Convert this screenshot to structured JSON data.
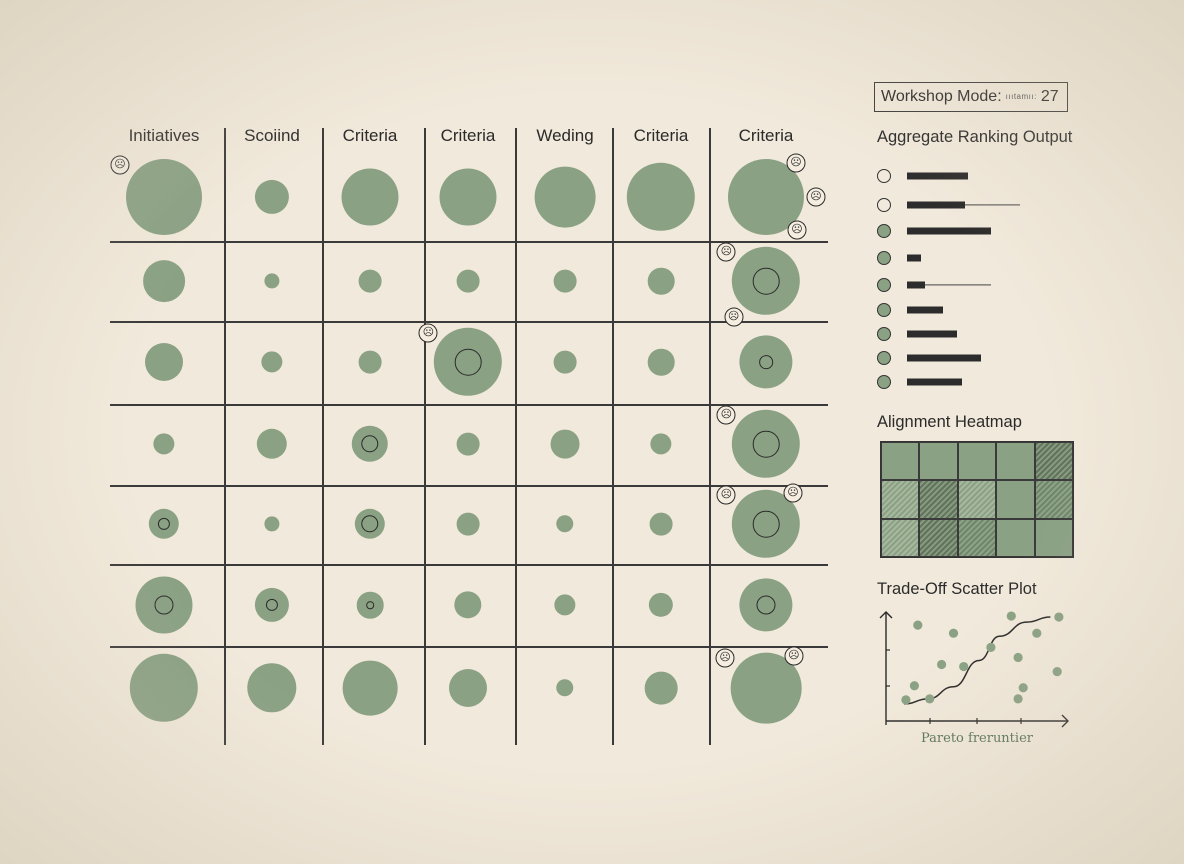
{
  "matrix": {
    "columns": [
      "Initiatives",
      "Scoiind",
      "Criteria",
      "Criteria",
      "Weding",
      "Criteria",
      "Criteria"
    ],
    "rows": [
      [
        {
          "size": 10,
          "ring": 0,
          "faces": [
            "top-left"
          ]
        },
        {
          "size": 4.5,
          "ring": 0
        },
        {
          "size": 7.5,
          "ring": 0
        },
        {
          "size": 7.5,
          "ring": 0
        },
        {
          "size": 8,
          "ring": 0
        },
        {
          "size": 9,
          "ring": 0
        },
        {
          "size": 10,
          "ring": 0,
          "faces": [
            "top-right",
            "right",
            "bottom-right"
          ]
        }
      ],
      [
        {
          "size": 5.5,
          "ring": 0
        },
        {
          "size": 2,
          "ring": 0
        },
        {
          "size": 3,
          "ring": 0
        },
        {
          "size": 3,
          "ring": 0
        },
        {
          "size": 3,
          "ring": 0
        },
        {
          "size": 3.5,
          "ring": 0
        },
        {
          "size": 9,
          "ring": 3.5,
          "faces": [
            "top-left",
            "bottom-left"
          ]
        }
      ],
      [
        {
          "size": 5,
          "ring": 0
        },
        {
          "size": 2.8,
          "ring": 0
        },
        {
          "size": 3,
          "ring": 0
        },
        {
          "size": 9,
          "ring": 3.5,
          "faces": [
            "top-left"
          ]
        },
        {
          "size": 3,
          "ring": 0
        },
        {
          "size": 3.5,
          "ring": 0
        },
        {
          "size": 7,
          "ring": 1.8
        }
      ],
      [
        {
          "size": 2.8,
          "ring": 0
        },
        {
          "size": 4,
          "ring": 0
        },
        {
          "size": 4.8,
          "ring": 2.3
        },
        {
          "size": 3,
          "ring": 0
        },
        {
          "size": 3.8,
          "ring": 0
        },
        {
          "size": 2.8,
          "ring": 0
        },
        {
          "size": 9,
          "ring": 3.5,
          "faces": [
            "top-left"
          ]
        }
      ],
      [
        {
          "size": 4,
          "ring": 1.6
        },
        {
          "size": 2,
          "ring": 0
        },
        {
          "size": 4,
          "ring": 2.3
        },
        {
          "size": 3,
          "ring": 0
        },
        {
          "size": 2.3,
          "ring": 0
        },
        {
          "size": 3,
          "ring": 0
        },
        {
          "size": 9,
          "ring": 3.5,
          "faces": [
            "top-left",
            "top-right"
          ]
        }
      ],
      [
        {
          "size": 7.5,
          "ring": 2.5
        },
        {
          "size": 4.5,
          "ring": 1.6
        },
        {
          "size": 3.5,
          "ring": 1
        },
        {
          "size": 3.6,
          "ring": 0
        },
        {
          "size": 2.8,
          "ring": 0
        },
        {
          "size": 3.2,
          "ring": 0
        },
        {
          "size": 7,
          "ring": 2.5
        }
      ],
      [
        {
          "size": 9,
          "ring": 0
        },
        {
          "size": 6.5,
          "ring": 0
        },
        {
          "size": 7.2,
          "ring": 0
        },
        {
          "size": 5,
          "ring": 0
        },
        {
          "size": 2.3,
          "ring": 0
        },
        {
          "size": 4.3,
          "ring": 0
        },
        {
          "size": 9.3,
          "ring": 0,
          "faces": [
            "top-left",
            "top-right"
          ]
        }
      ]
    ]
  },
  "header": {
    "mode_label": "Workshop Mode:",
    "mode_sub": "ıııtamıı:",
    "mode_value": "27"
  },
  "ranking": {
    "title": "Aggregate Ranking Output",
    "items": [
      {
        "filled": false,
        "score": 61,
        "range_max": 0
      },
      {
        "filled": false,
        "score": 58,
        "range_max": 113
      },
      {
        "filled": true,
        "score": 84,
        "range_max": 0
      },
      {
        "filled": true,
        "score": 14,
        "range_max": 0
      },
      {
        "filled": true,
        "score": 18,
        "range_max": 84
      },
      {
        "filled": true,
        "score": 36,
        "range_max": 0
      },
      {
        "filled": true,
        "score": 50,
        "range_max": 0
      },
      {
        "filled": true,
        "score": 74,
        "range_max": 0
      },
      {
        "filled": true,
        "score": 55,
        "range_max": 0
      }
    ]
  },
  "heatmap": {
    "title": "Alignment Heatmap",
    "cells": [
      [
        0,
        0,
        0,
        0,
        3
      ],
      [
        1,
        3,
        1,
        0,
        2
      ],
      [
        1,
        3,
        2,
        0,
        0
      ]
    ]
  },
  "scatter": {
    "title": "Trade-Off Scatter Plot",
    "caption": "Pareto freruntier",
    "points": [
      [
        0.07,
        0.13
      ],
      [
        0.12,
        0.27
      ],
      [
        0.14,
        0.87
      ],
      [
        0.21,
        0.14
      ],
      [
        0.35,
        0.79
      ],
      [
        0.28,
        0.48
      ],
      [
        0.41,
        0.46
      ],
      [
        0.57,
        0.65
      ],
      [
        0.69,
        0.96
      ],
      [
        0.73,
        0.55
      ],
      [
        0.76,
        0.25
      ],
      [
        0.73,
        0.14
      ],
      [
        0.84,
        0.79
      ],
      [
        0.97,
        0.95
      ],
      [
        0.96,
        0.41
      ]
    ],
    "curve": [
      [
        0.06,
        0.09
      ],
      [
        0.2,
        0.14
      ],
      [
        0.35,
        0.26
      ],
      [
        0.5,
        0.52
      ],
      [
        0.62,
        0.76
      ],
      [
        0.78,
        0.9
      ],
      [
        0.92,
        0.95
      ]
    ],
    "x_ticks": 3,
    "y_ticks": 2
  },
  "colors": {
    "bubble": "#8aa184",
    "ink": "#2a2a2a",
    "paper": "#f1e9db",
    "pareto": "#57725a"
  }
}
